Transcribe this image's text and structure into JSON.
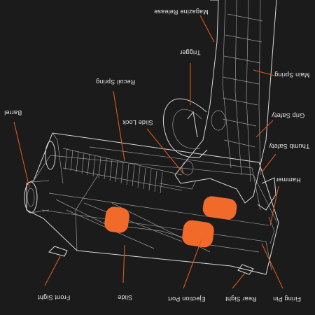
{
  "callouts": [
    {
      "key": "magazine_release",
      "text": "Magazine Release"
    },
    {
      "key": "trigger",
      "text": "Trigger"
    },
    {
      "key": "main_spring",
      "text": "Main Spring"
    },
    {
      "key": "recoil_spring",
      "text": "Recoil Spring"
    },
    {
      "key": "barrel",
      "text": "Barrel"
    },
    {
      "key": "slide_lock",
      "text": "Slide Lock"
    },
    {
      "key": "grip_safety",
      "text": "Grip Safety"
    },
    {
      "key": "thumb_safety",
      "text": "Thumb Safety"
    },
    {
      "key": "hammer",
      "text": "Hammer"
    },
    {
      "key": "front_sight",
      "text": "Front Sight"
    },
    {
      "key": "slide",
      "text": "Slide"
    },
    {
      "key": "ejection_port",
      "text": "Ejection Port"
    },
    {
      "key": "rear_sight",
      "text": "Rear Sight"
    },
    {
      "key": "firing_pin",
      "text": "Firing Pin"
    }
  ],
  "colors": {
    "background": "#1b1b1b",
    "wireframe": "#d9d9d9",
    "leader_line": "#d65a1e",
    "highlight": "#f26a2a",
    "label_text": "#e8e8e8"
  }
}
